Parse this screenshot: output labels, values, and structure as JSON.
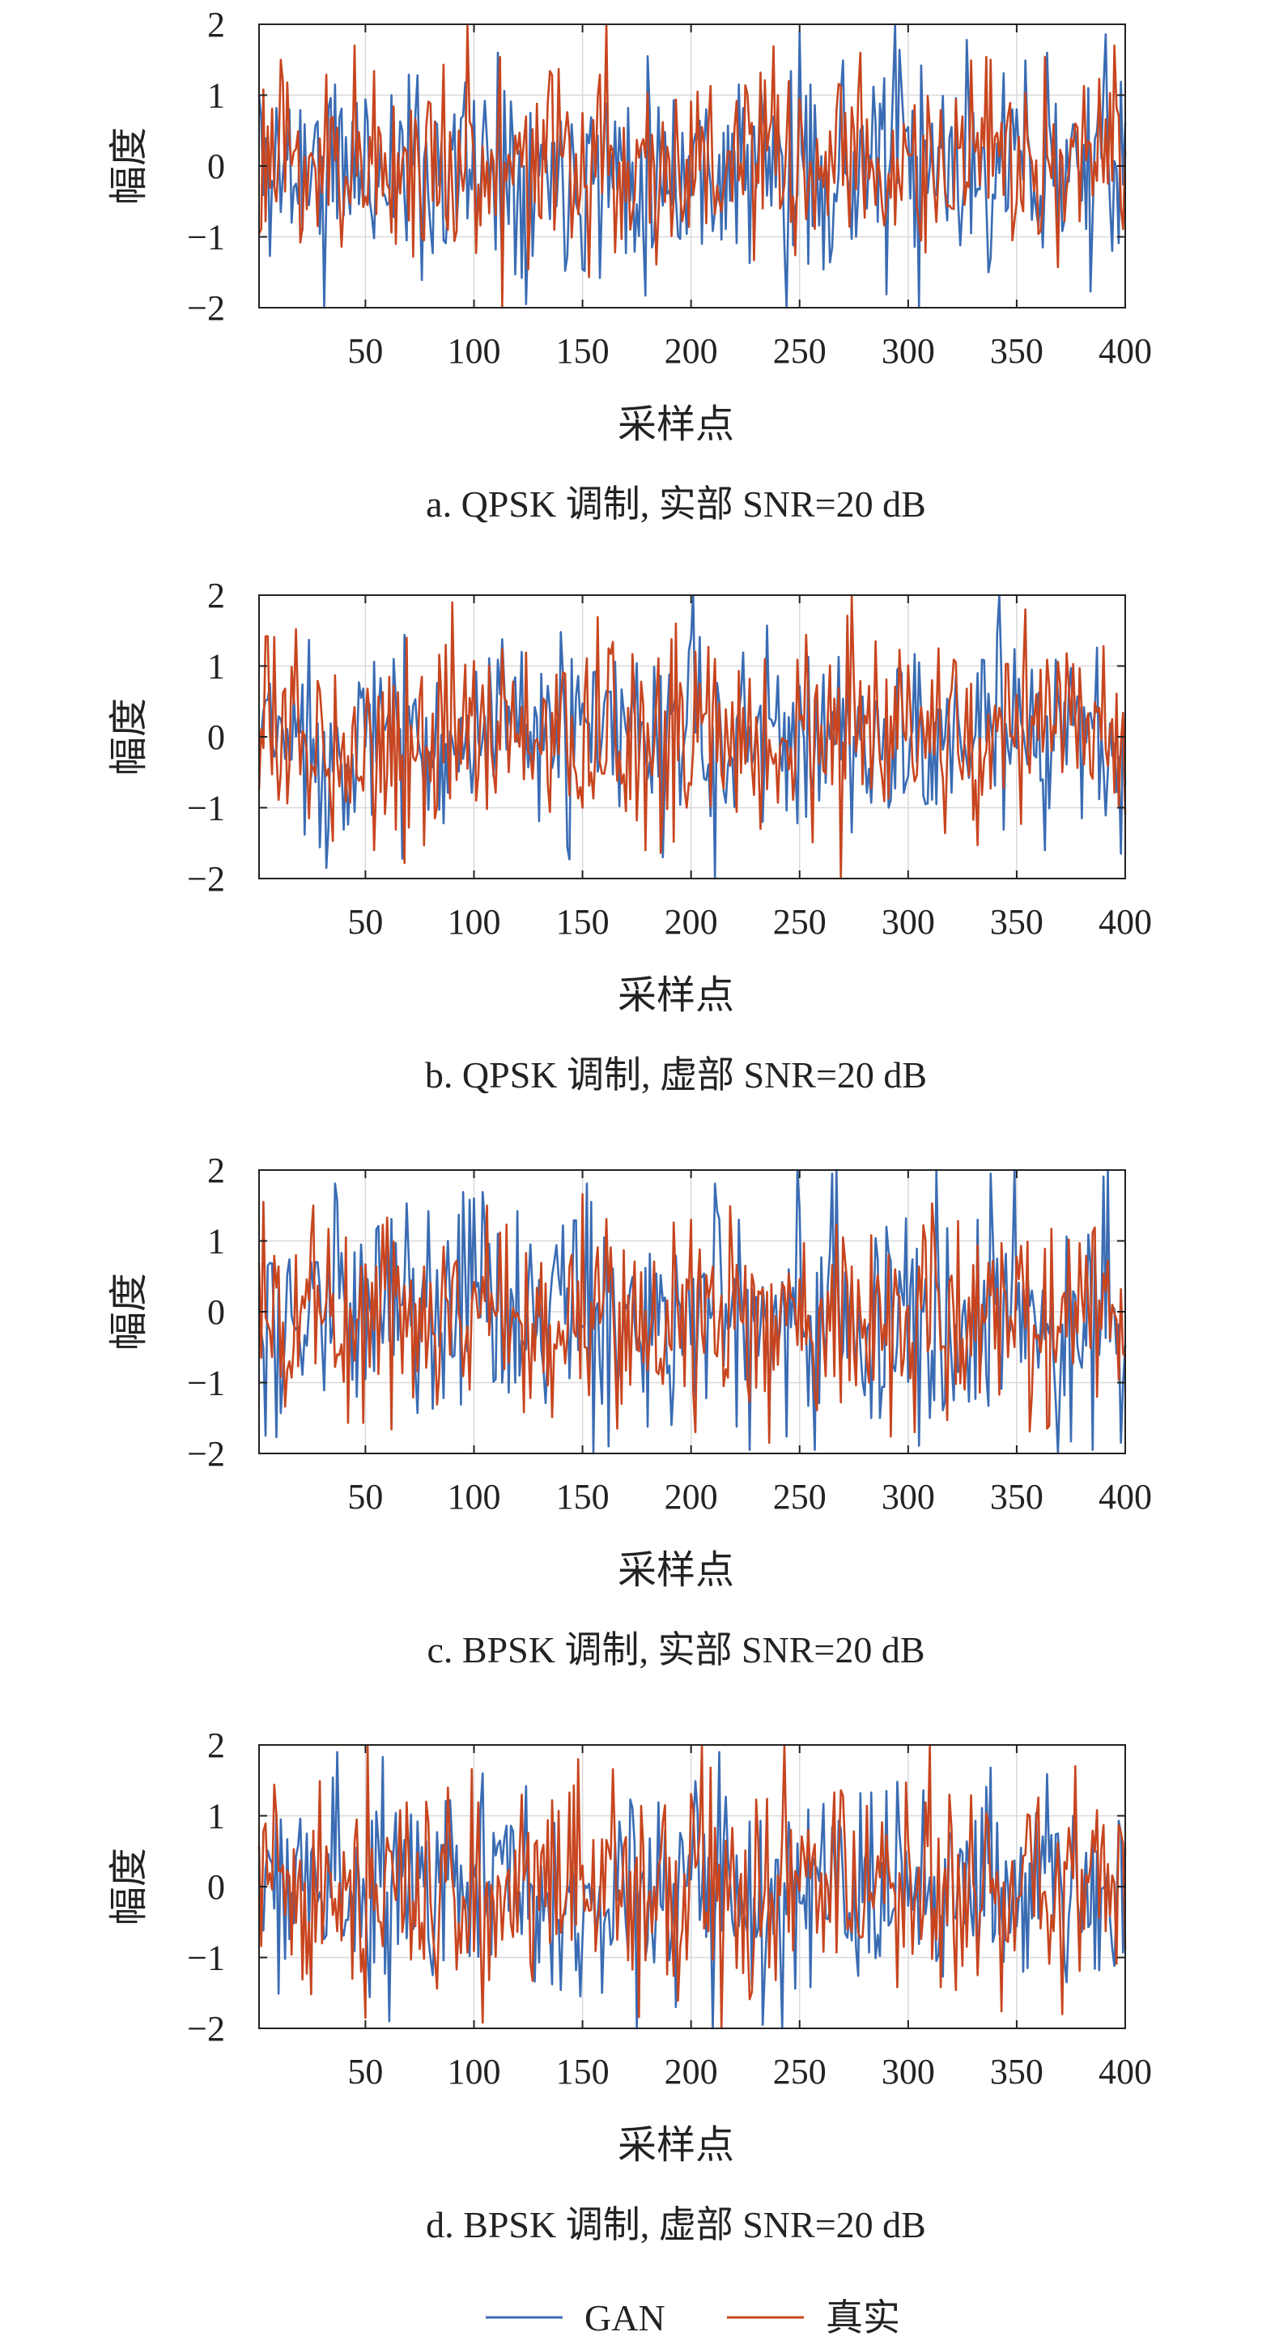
{
  "legend": {
    "placement": "bottom-center",
    "items": [
      {
        "name": "GAN",
        "color": "#3a6cb4"
      },
      {
        "name": "真实",
        "color": "#c8451f"
      }
    ]
  },
  "chart_data": [
    {
      "type": "line",
      "caption": "a. QPSK 调制, 实部 SNR=20 dB",
      "xlabel": "采样点",
      "ylabel": "幅度",
      "xlim": [
        1,
        400
      ],
      "ylim": [
        -2,
        2
      ],
      "xticks": [
        50,
        100,
        150,
        200,
        250,
        300,
        350,
        400
      ],
      "yticks": [
        2,
        1,
        0,
        -1,
        -2
      ],
      "grid": true,
      "series": [
        {
          "name": "GAN",
          "seed": 11,
          "amp": 0.72,
          "peaks": [
            [
              0,
              1.0
            ],
            [
              30,
              -2.0
            ],
            [
              110,
              1.6
            ],
            [
              243,
              -2.0
            ],
            [
              293,
              2.0
            ],
            [
              304,
              -2.0
            ],
            [
              363,
              1.6
            ]
          ]
        },
        {
          "name": "真实",
          "seed": 23,
          "amp": 0.68,
          "peaks": [
            [
              44,
              1.7
            ],
            [
              96,
              2.0
            ],
            [
              112,
              -2.0
            ],
            [
              160,
              2.0
            ],
            [
              394,
              1.7
            ]
          ]
        }
      ]
    },
    {
      "type": "line",
      "caption": "b. QPSK 调制, 虚部 SNR=20 dB",
      "xlabel": "采样点",
      "ylabel": "幅度",
      "xlim": [
        1,
        400
      ],
      "ylim": [
        -2,
        2
      ],
      "xticks": [
        50,
        100,
        150,
        200,
        250,
        300,
        350,
        400
      ],
      "yticks": [
        2,
        1,
        0,
        -1,
        -2
      ],
      "grid": true,
      "series": [
        {
          "name": "GAN",
          "seed": 37,
          "amp": 0.66,
          "peaks": [
            [
              31,
              -1.85
            ],
            [
              200,
              2.0
            ],
            [
              210,
              -2.0
            ],
            [
              341,
              2.0
            ],
            [
              362,
              -1.6
            ],
            [
              397,
              -1.65
            ]
          ]
        },
        {
          "name": "真实",
          "seed": 53,
          "amp": 0.68,
          "peaks": [
            [
              89,
              1.9
            ],
            [
              273,
              2.0
            ],
            [
              268,
              -2.0
            ],
            [
              353,
              1.8
            ],
            [
              178,
              -1.6
            ],
            [
              53,
              -1.6
            ]
          ]
        }
      ]
    },
    {
      "type": "line",
      "caption": "c. BPSK 调制, 实部 SNR=20 dB",
      "xlabel": "采样点",
      "ylabel": "幅度",
      "xlim": [
        1,
        400
      ],
      "ylim": [
        -2,
        2
      ],
      "xticks": [
        50,
        100,
        150,
        200,
        250,
        300,
        350,
        400
      ],
      "yticks": [
        2,
        1,
        0,
        -1,
        -2
      ],
      "grid": true,
      "series": [
        {
          "name": "GAN",
          "seed": 71,
          "amp": 0.78,
          "peaks": [
            [
              3,
              -1.75
            ],
            [
              99,
              1.6
            ],
            [
              154,
              -2.0
            ],
            [
              248,
              2.0
            ],
            [
              266,
              2.0
            ],
            [
              312,
              2.0
            ],
            [
              348,
              2.0
            ],
            [
              368,
              -2.0
            ],
            [
              391,
              2.0
            ],
            [
              397,
              -1.85
            ]
          ]
        },
        {
          "name": "真实",
          "seed": 89,
          "amp": 0.72,
          "peaks": [
            [
              25,
              1.5
            ],
            [
              105,
              1.5
            ],
            [
              201,
              -1.7
            ],
            [
              235,
              -1.85
            ],
            [
              363,
              -1.65
            ],
            [
              302,
              -1.7
            ]
          ]
        }
      ]
    },
    {
      "type": "line",
      "caption": "d. BPSK 调制, 虚部 SNR=20 dB",
      "xlabel": "采样点",
      "ylabel": "幅度",
      "xlim": [
        1,
        400
      ],
      "ylim": [
        -2,
        2
      ],
      "xticks": [
        50,
        100,
        150,
        200,
        250,
        300,
        350,
        400
      ],
      "yticks": [
        2,
        1,
        0,
        -1,
        -2
      ],
      "grid": true,
      "series": [
        {
          "name": "GAN",
          "seed": 97,
          "amp": 0.7,
          "peaks": [
            [
              36,
              1.9
            ],
            [
              60,
              -1.9
            ],
            [
              174,
              -2.0
            ],
            [
              209,
              -2.0
            ],
            [
              241,
              -2.0
            ],
            [
              212,
              1.9
            ]
          ]
        },
        {
          "name": "真实",
          "seed": 113,
          "amp": 0.72,
          "peaks": [
            [
              49,
              -1.85
            ],
            [
              50,
              2.0
            ],
            [
              204,
              2.0
            ],
            [
              213,
              -2.0
            ],
            [
              242,
              2.0
            ],
            [
              309,
              2.0
            ],
            [
              370,
              -1.8
            ],
            [
              376,
              1.7
            ]
          ]
        }
      ]
    }
  ]
}
